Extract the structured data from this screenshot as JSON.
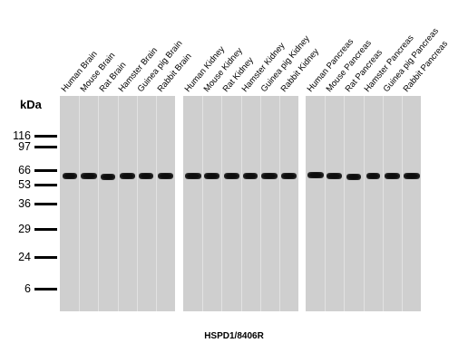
{
  "unit_label": "kDa",
  "markers": [
    "116",
    "97",
    "66",
    "53",
    "36",
    "29",
    "24",
    "6"
  ],
  "panels": [
    {
      "lanes": [
        "Human Brain",
        "Mouse Brain",
        "Rat Brain",
        "Hamster Brain",
        "Guinea pig Brain",
        "Rabbit Brain"
      ]
    },
    {
      "lanes": [
        "Human Kidney",
        "Mouse Kidney",
        "Rat Kidney",
        "Hamster Kidney",
        "Guinea pig Kidney",
        "Rabbit Kidney"
      ]
    },
    {
      "lanes": [
        "Human Pancreas",
        "Mouse Pancreas",
        "Rat Pancreas",
        "Hamster Pancreas",
        "Guinea pig Pancreas",
        "Rabbit Pancreas"
      ]
    }
  ],
  "caption": "HSPD1/8406R",
  "colors": {
    "membrane": "#cfcfcf",
    "band": "#111111"
  }
}
